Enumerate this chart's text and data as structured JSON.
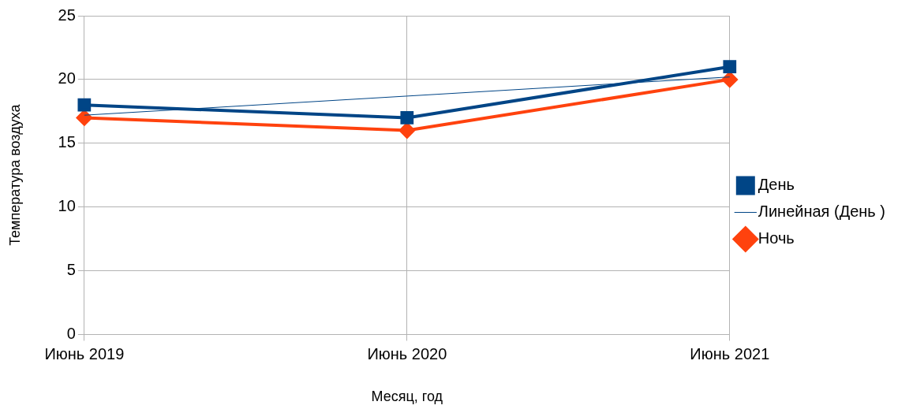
{
  "chart_data": {
    "type": "line",
    "xlabel": "Месяц, год",
    "ylabel": "Температура воздуха",
    "categories": [
      "Июнь 2019",
      "Июнь 2020",
      "Июнь 2021"
    ],
    "series": [
      {
        "name": "День",
        "color": "#004586",
        "values": [
          18,
          17,
          21
        ],
        "marker": "square"
      },
      {
        "name": "Линейная (День )",
        "color": "#004586",
        "values": [
          17.2,
          18.7,
          20.2
        ],
        "marker": "none"
      },
      {
        "name": "Ночь",
        "color": "#ff420e",
        "values": [
          17,
          16,
          20
        ],
        "marker": "diamond"
      }
    ],
    "ylim": [
      0,
      25
    ],
    "yticks": [
      0,
      5,
      10,
      15,
      20,
      25
    ],
    "grid": true,
    "legend": "right"
  }
}
